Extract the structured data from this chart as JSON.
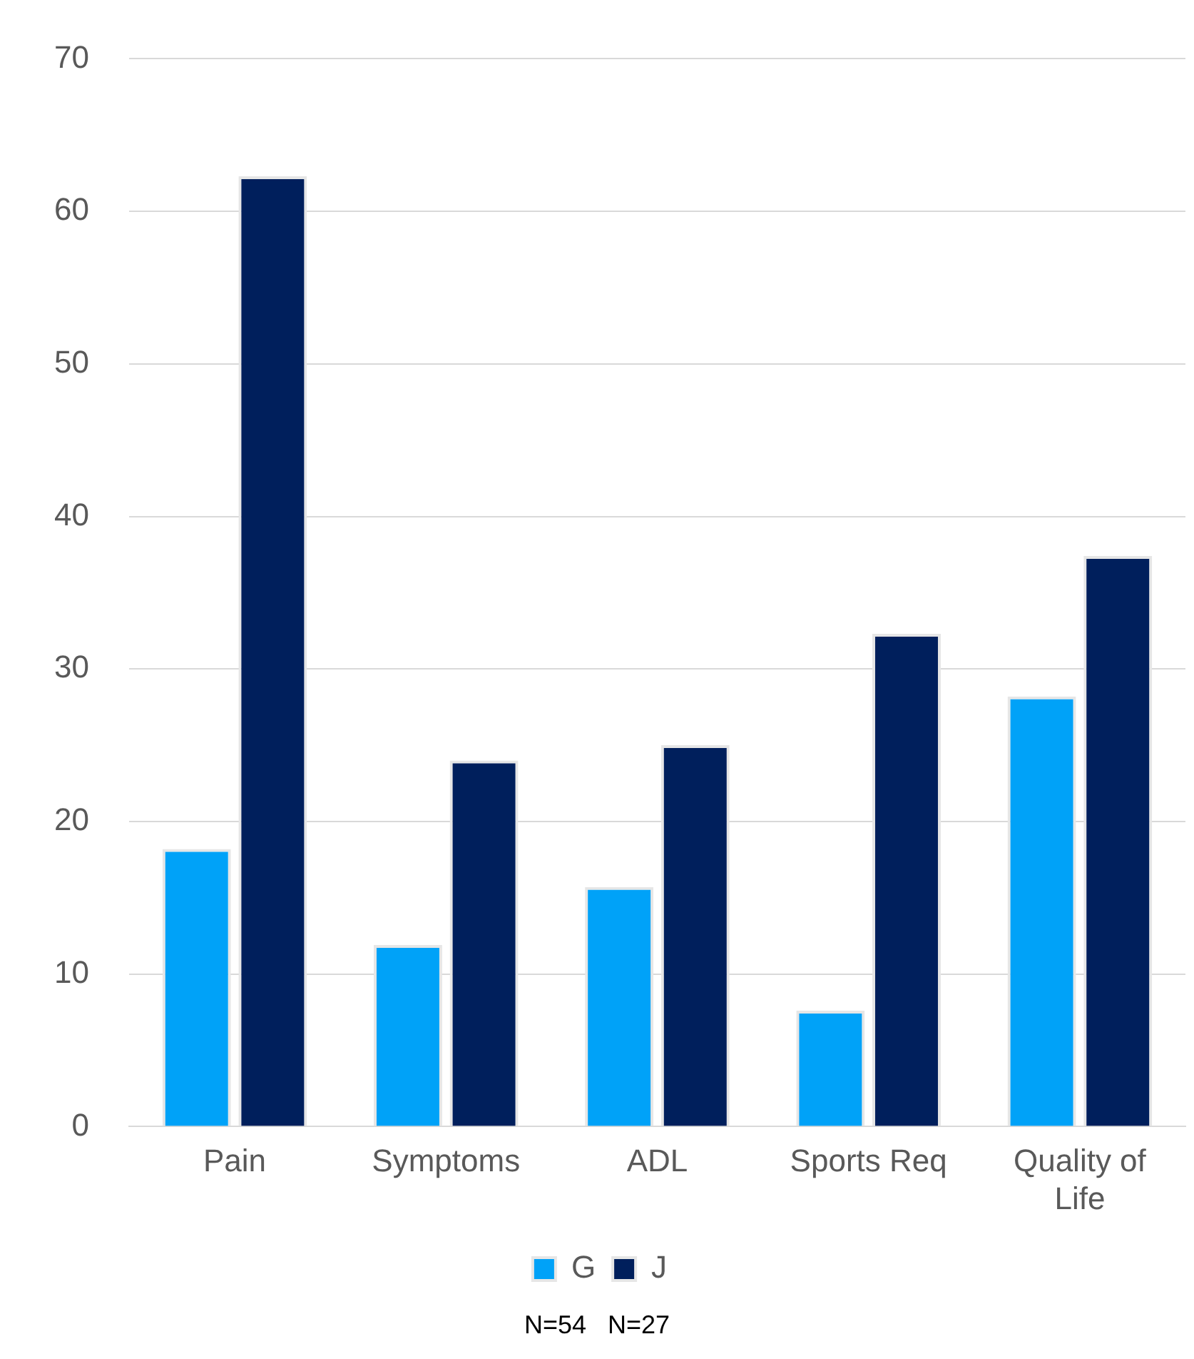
{
  "chart_data": {
    "type": "bar",
    "categories": [
      "Pain",
      "Symptoms",
      "ADL",
      "Sports Req",
      "Quality of Life"
    ],
    "series": [
      {
        "name": "G",
        "color": "#00a2f8",
        "values": [
          18.2,
          11.9,
          15.7,
          7.6,
          28.2
        ]
      },
      {
        "name": "J",
        "color": "#001f5c",
        "values": [
          62.3,
          24.0,
          25.0,
          32.3,
          37.4
        ]
      }
    ],
    "ylim": [
      0,
      70
    ],
    "yticks": [
      0,
      10,
      20,
      30,
      40,
      50,
      60,
      70
    ],
    "grid": "y",
    "legend": "bottom",
    "annotations": [
      "N=54   N=27"
    ]
  }
}
